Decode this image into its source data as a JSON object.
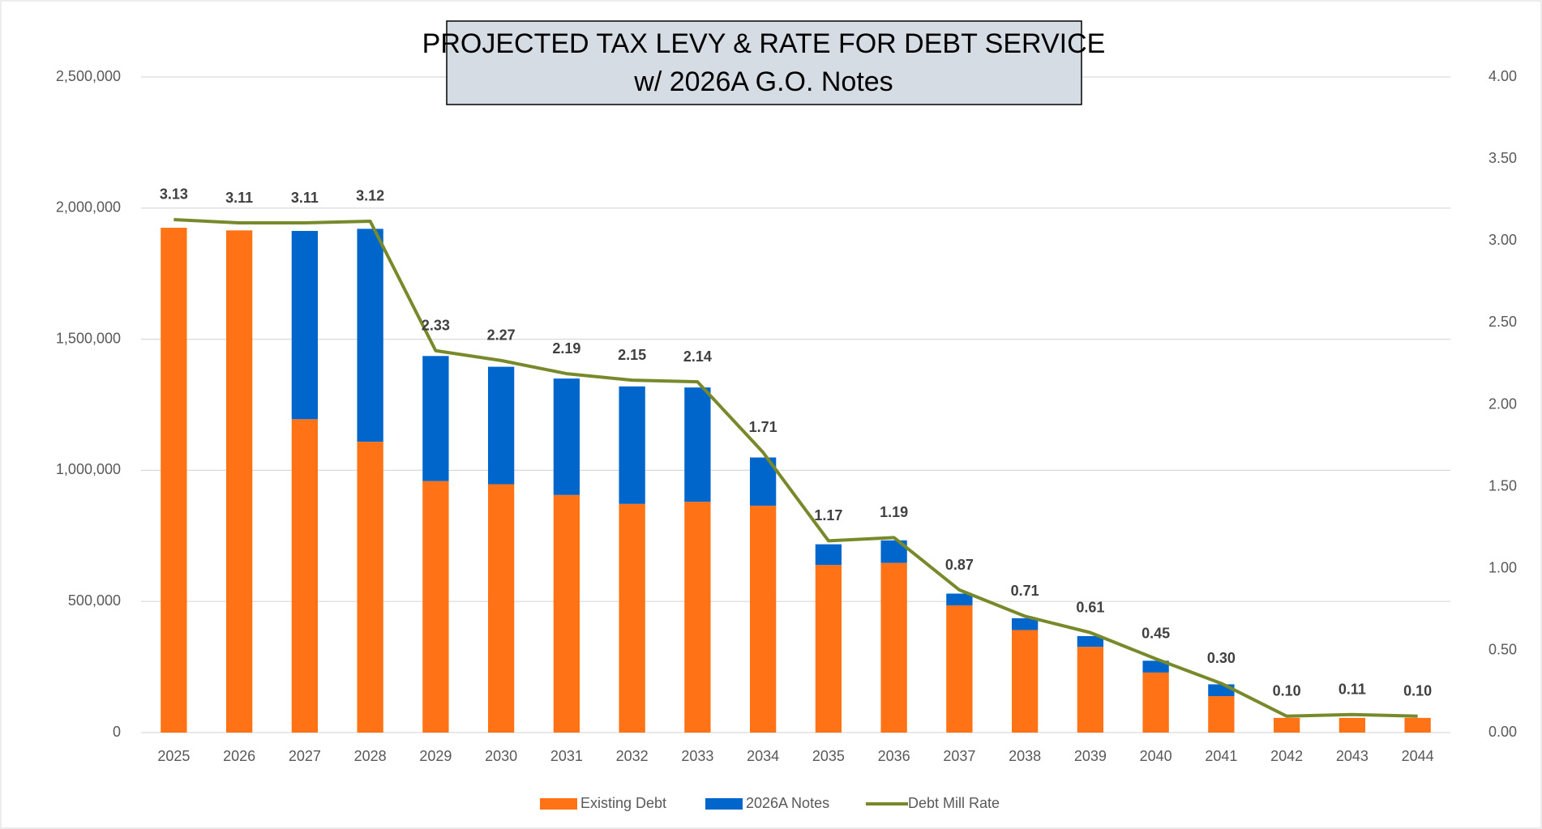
{
  "chart_data": {
    "type": "bar",
    "stacked": true,
    "title": "PROJECTED TAX LEVY & RATE FOR DEBT SERVICE",
    "subtitle": "w/ 2026A G.O. Notes",
    "categories": [
      "2025",
      "2026",
      "2027",
      "2028",
      "2029",
      "2030",
      "2031",
      "2032",
      "2033",
      "2034",
      "2035",
      "2036",
      "2037",
      "2038",
      "2039",
      "2040",
      "2041",
      "2042",
      "2043",
      "2044"
    ],
    "series": [
      {
        "name": "Existing Debt",
        "type": "bar",
        "color": "#ff7316",
        "values": [
          1925000,
          1915000,
          1195000,
          1109000,
          959000,
          947000,
          906000,
          872000,
          880000,
          865000,
          639000,
          647000,
          485000,
          391000,
          327000,
          229000,
          139000,
          56000,
          56000,
          56000
        ]
      },
      {
        "name": "2026A Notes",
        "type": "bar",
        "color": "#0066cc",
        "values": [
          0,
          0,
          718000,
          812000,
          477000,
          448000,
          444000,
          448000,
          436000,
          184000,
          79000,
          86000,
          45000,
          45000,
          41000,
          45000,
          45000,
          0,
          0,
          0
        ]
      },
      {
        "name": "Debt Mill Rate",
        "type": "line",
        "axis": "y2",
        "color": "#77892a",
        "values": [
          3.13,
          3.11,
          3.11,
          3.12,
          2.33,
          2.27,
          2.19,
          2.15,
          2.14,
          1.71,
          1.17,
          1.19,
          0.87,
          0.71,
          0.61,
          0.45,
          0.3,
          0.1,
          0.11,
          0.1
        ],
        "value_labels": [
          "3.13",
          "3.11",
          "3.11",
          "3.12",
          "2.33",
          "2.27",
          "2.19",
          "2.15",
          "2.14",
          "1.71",
          "1.17",
          "1.19",
          "0.87",
          "0.71",
          "0.61",
          "0.45",
          "0.30",
          "0.10",
          "0.11",
          "0.10"
        ]
      }
    ],
    "ylim": [
      0,
      2500000
    ],
    "yticks": [
      0,
      {
        "value": 500000,
        "label": "500,000"
      },
      {
        "value": 1000000,
        "label": "1,000,000"
      },
      {
        "value": 1500000,
        "label": "1,500,000"
      },
      {
        "value": 2000000,
        "label": "2,000,000"
      },
      {
        "value": 2500000,
        "label": "2,500,000"
      }
    ],
    "y2lim": [
      0,
      4
    ],
    "y2ticks": [
      {
        "value": 0,
        "label": "0.00"
      },
      {
        "value": 0.5,
        "label": "0.50"
      },
      {
        "value": 1,
        "label": "1.00"
      },
      {
        "value": 1.5,
        "label": "1.50"
      },
      {
        "value": 2,
        "label": "2.00"
      },
      {
        "value": 2.5,
        "label": "2.50"
      },
      {
        "value": 3,
        "label": "3.00"
      },
      {
        "value": 3.5,
        "label": "3.50"
      },
      {
        "value": 4,
        "label": "4.00"
      }
    ],
    "grid": true,
    "legend": "bottom"
  }
}
